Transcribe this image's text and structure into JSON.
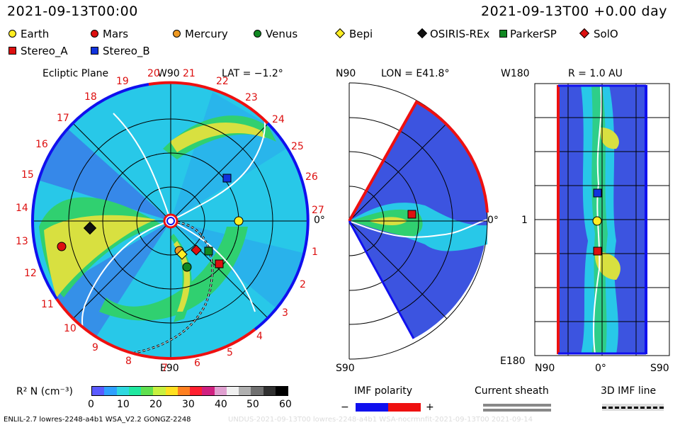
{
  "header": {
    "timestamp_left": "2021-09-13T00:00",
    "timestamp_right": "2021-09-13T00 +0.00 day"
  },
  "legend": {
    "objects": [
      {
        "label": "Earth",
        "color": "#ffee22",
        "shape": "circle"
      },
      {
        "label": "Mars",
        "color": "#dd1010",
        "shape": "circle"
      },
      {
        "label": "Mercury",
        "color": "#ee9922",
        "shape": "circle"
      },
      {
        "label": "Venus",
        "color": "#118822",
        "shape": "circle"
      },
      {
        "label": "Bepi",
        "color": "#ffee22",
        "shape": "diamond"
      },
      {
        "label": "OSIRIS-REx",
        "color": "#111111",
        "shape": "diamond"
      },
      {
        "label": "ParkerSP",
        "color": "#118822",
        "shape": "square"
      },
      {
        "label": "SolO",
        "color": "#dd1010",
        "shape": "diamond"
      },
      {
        "label": "Stereo_A",
        "color": "#dd1010",
        "shape": "square"
      },
      {
        "label": "Stereo_B",
        "color": "#1133dd",
        "shape": "square"
      }
    ]
  },
  "ecliptic": {
    "title": "Ecliptic Plane",
    "lat_label": "LAT = −1.2°",
    "w90": "W90",
    "e90": "E90",
    "zero": "0°",
    "carrington_labels": [
      "19",
      "20",
      "21",
      "22",
      "23",
      "24",
      "25",
      "26",
      "27",
      "1",
      "2",
      "3",
      "4",
      "5",
      "6",
      "7",
      "8",
      "9",
      "10",
      "11",
      "12",
      "13",
      "14",
      "15",
      "16",
      "17",
      "18"
    ]
  },
  "meridional": {
    "lon_label": "LON = E41.8°",
    "n90": "N90",
    "s90": "S90",
    "zero": "0°"
  },
  "radial": {
    "r_label": "R = 1.0 AU",
    "w180": "W180",
    "e180": "E180",
    "one": "1",
    "n90": "N90",
    "zero": "0°",
    "s90": "S90"
  },
  "colorbar": {
    "label": "R² N (cm⁻³)",
    "ticks": [
      "0",
      "10",
      "20",
      "30",
      "40",
      "50",
      "60"
    ],
    "colors": [
      "#5a5aff",
      "#2fa0ff",
      "#2fd8e0",
      "#20e8a0",
      "#60e050",
      "#c8f040",
      "#ffe020",
      "#ff8020",
      "#ff2030",
      "#d02080",
      "#e0a0d0",
      "#f0f0f0",
      "#b0b0b0",
      "#707070",
      "#303030",
      "#000000"
    ]
  },
  "imf_legend": {
    "polarity_title": "IMF polarity",
    "minus": "−",
    "plus": "+",
    "sheath_title": "Current sheath",
    "line_title": "3D IMF line"
  },
  "footer": {
    "left_text": "ENLIL-2.7 lowres-2248-a4b1 WSA_V2.2 GONGZ-2248",
    "right_text": "UNDUS-2021-09-13T00 lowres-2248-a4b1 WSA-nocrmnfit-2021-09-13T00 2021-09-14"
  },
  "colors": {
    "blue_field": "#3c54e0",
    "cyan_field": "#28c8e8",
    "green_band": "#30d070",
    "yellow_band": "#d8e040",
    "red_polarity": "#ee1010",
    "blue_polarity": "#1010ee"
  }
}
